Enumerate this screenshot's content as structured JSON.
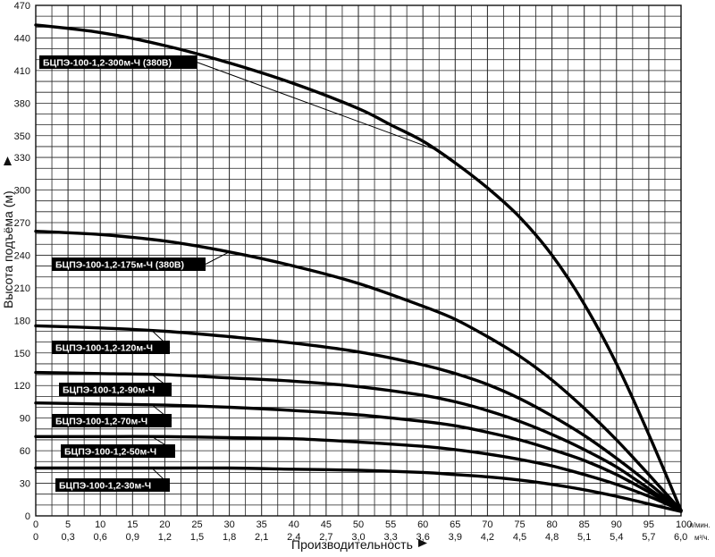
{
  "chart_data": {
    "type": "line",
    "xlabel": "Производительность",
    "ylabel": "Высота подъёма (м)",
    "xlim": [
      0,
      100
    ],
    "ylim": [
      0,
      470
    ],
    "grid": true,
    "x_ticks": [
      "0",
      "5",
      "10",
      "15",
      "20",
      "25",
      "30",
      "35",
      "40",
      "45",
      "50",
      "55",
      "60",
      "65",
      "70",
      "75",
      "80",
      "85",
      "90",
      "95",
      "100"
    ],
    "x_unit": "л/мин.",
    "x2_ticks": [
      "0",
      "0,3",
      "0,6",
      "0,9",
      "1,2",
      "1,5",
      "1,8",
      "2,1",
      "2,4",
      "2,7",
      "3,0",
      "3,3",
      "3,6",
      "3,9",
      "4,2",
      "4,5",
      "4,8",
      "5,1",
      "5,4",
      "5,7",
      "6,0"
    ],
    "x2_unit": "м³/ч.",
    "y_ticks": [
      0,
      30,
      60,
      90,
      120,
      150,
      180,
      210,
      240,
      270,
      300,
      330,
      350,
      380,
      410,
      440,
      470
    ],
    "series": [
      {
        "name": "БЦПЭ-100-1,2-300м-Ч (380В)",
        "x": [
          0,
          10,
          20,
          30,
          40,
          50,
          55,
          60,
          65,
          70,
          75,
          80,
          85,
          90,
          95,
          100
        ],
        "y": [
          452,
          445,
          433,
          417,
          398,
          375,
          360,
          345,
          325,
          302,
          275,
          240,
          195,
          140,
          75,
          5
        ]
      },
      {
        "name": "БЦПЭ-100-1,2-175м-Ч (380В)",
        "x": [
          0,
          10,
          20,
          30,
          40,
          50,
          60,
          65,
          70,
          75,
          80,
          85,
          90,
          95,
          100
        ],
        "y": [
          262,
          259,
          253,
          243,
          230,
          214,
          193,
          181,
          165,
          147,
          125,
          99,
          70,
          38,
          5
        ]
      },
      {
        "name": "БЦПЭ-100-1,2-120м-Ч",
        "x": [
          0,
          10,
          20,
          30,
          40,
          50,
          60,
          65,
          70,
          75,
          80,
          85,
          90,
          95,
          100
        ],
        "y": [
          175,
          173,
          170,
          165,
          159,
          151,
          139,
          131,
          121,
          108,
          92,
          74,
          53,
          30,
          5
        ]
      },
      {
        "name": "БЦПЭ-100-1,2-90м-Ч",
        "x": [
          0,
          10,
          20,
          30,
          40,
          50,
          60,
          65,
          70,
          75,
          80,
          85,
          90,
          95,
          100
        ],
        "y": [
          132,
          131,
          130,
          127,
          124,
          119,
          111,
          105,
          97,
          87,
          75,
          61,
          45,
          25,
          5
        ]
      },
      {
        "name": "БЦПЭ-100-1,2-70м-Ч",
        "x": [
          0,
          10,
          20,
          30,
          40,
          50,
          60,
          65,
          70,
          75,
          80,
          85,
          90,
          95,
          100
        ],
        "y": [
          104,
          103,
          102,
          100,
          97,
          93,
          87,
          83,
          77,
          70,
          61,
          51,
          38,
          22,
          5
        ]
      },
      {
        "name": "БЦПЭ-100-1,2-50м-Ч",
        "x": [
          0,
          10,
          20,
          30,
          40,
          50,
          60,
          65,
          70,
          75,
          80,
          85,
          90,
          95,
          100
        ],
        "y": [
          73,
          73,
          73,
          72,
          71,
          68,
          64,
          61,
          57,
          52,
          46,
          38,
          29,
          18,
          5
        ]
      },
      {
        "name": "БЦПЭ-100-1,2-30м-Ч",
        "x": [
          0,
          10,
          20,
          30,
          40,
          50,
          60,
          65,
          70,
          75,
          80,
          85,
          90,
          95,
          100
        ],
        "y": [
          44,
          44,
          44,
          44,
          43,
          42,
          40,
          38,
          36,
          33,
          29,
          24,
          18,
          11,
          4
        ]
      }
    ]
  }
}
